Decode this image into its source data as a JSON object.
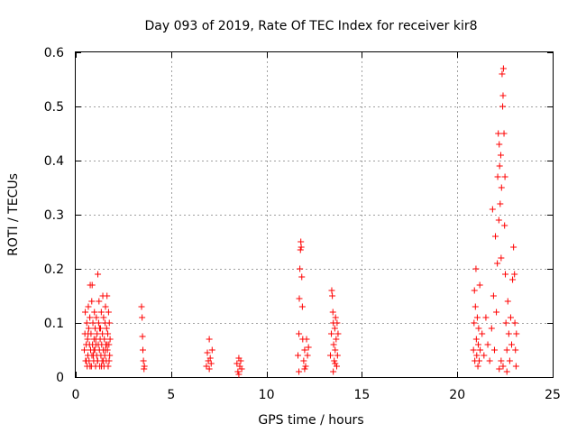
{
  "chart_data": {
    "type": "scatter",
    "title": "Day 093 of 2019, Rate Of TEC Index for receiver kir8",
    "xlabel": "GPS time / hours",
    "ylabel": "ROTI / TECUs",
    "xlim": [
      0,
      25
    ],
    "ylim": [
      0,
      0.6
    ],
    "x_ticks": [
      "0",
      "5",
      "10",
      "15",
      "20",
      "25"
    ],
    "y_ticks": [
      "0",
      "0.1",
      "0.2",
      "0.3",
      "0.4",
      "0.5",
      "0.6"
    ],
    "grid": true,
    "marker": "+",
    "marker_color": "#ff0000",
    "series": [
      {
        "name": "ROTI",
        "points": [
          [
            0.45,
            0.05
          ],
          [
            0.48,
            0.08
          ],
          [
            0.5,
            0.12
          ],
          [
            0.52,
            0.03
          ],
          [
            0.55,
            0.06
          ],
          [
            0.58,
            0.1
          ],
          [
            0.6,
            0.02
          ],
          [
            0.62,
            0.07
          ],
          [
            0.64,
            0.04
          ],
          [
            0.66,
            0.13
          ],
          [
            0.68,
            0.09
          ],
          [
            0.7,
            0.03
          ],
          [
            0.72,
            0.06
          ],
          [
            0.74,
            0.11
          ],
          [
            0.76,
            0.17
          ],
          [
            0.78,
            0.05
          ],
          [
            0.8,
            0.08
          ],
          [
            0.82,
            0.02
          ],
          [
            0.84,
            0.14
          ],
          [
            0.86,
            0.17
          ],
          [
            0.88,
            0.06
          ],
          [
            0.9,
            0.1
          ],
          [
            0.92,
            0.04
          ],
          [
            0.94,
            0.03
          ],
          [
            0.96,
            0.07
          ],
          [
            0.98,
            0.12
          ],
          [
            1.0,
            0.05
          ],
          [
            1.02,
            0.09
          ],
          [
            1.04,
            0.02
          ],
          [
            1.06,
            0.06
          ],
          [
            1.08,
            0.11
          ],
          [
            1.1,
            0.04
          ],
          [
            1.12,
            0.08
          ],
          [
            1.14,
            0.03
          ],
          [
            1.16,
            0.19
          ],
          [
            1.18,
            0.06
          ],
          [
            1.2,
            0.1
          ],
          [
            1.22,
            0.14
          ],
          [
            1.24,
            0.05
          ],
          [
            1.26,
            0.02
          ],
          [
            1.28,
            0.07
          ],
          [
            1.3,
            0.09
          ],
          [
            1.32,
            0.04
          ],
          [
            1.34,
            0.12
          ],
          [
            1.36,
            0.06
          ],
          [
            1.38,
            0.03
          ],
          [
            1.4,
            0.08
          ],
          [
            1.42,
            0.15
          ],
          [
            1.44,
            0.05
          ],
          [
            1.46,
            0.11
          ],
          [
            1.48,
            0.02
          ],
          [
            1.5,
            0.07
          ],
          [
            1.52,
            0.04
          ],
          [
            1.54,
            0.1
          ],
          [
            1.56,
            0.13
          ],
          [
            1.58,
            0.06
          ],
          [
            1.6,
            0.03
          ],
          [
            1.62,
            0.09
          ],
          [
            1.64,
            0.15
          ],
          [
            1.66,
            0.05
          ],
          [
            1.68,
            0.08
          ],
          [
            1.7,
            0.02
          ],
          [
            1.72,
            0.12
          ],
          [
            1.74,
            0.06
          ],
          [
            1.76,
            0.1
          ],
          [
            1.78,
            0.04
          ],
          [
            1.8,
            0.07
          ],
          [
            0.55,
            0.03
          ],
          [
            0.75,
            0.02
          ],
          [
            0.95,
            0.05
          ],
          [
            1.15,
            0.03
          ],
          [
            1.35,
            0.02
          ],
          [
            1.55,
            0.05
          ],
          [
            1.75,
            0.03
          ],
          [
            0.65,
            0.08
          ],
          [
            0.85,
            0.04
          ],
          [
            1.05,
            0.07
          ],
          [
            1.25,
            0.09
          ],
          [
            1.45,
            0.03
          ],
          [
            1.65,
            0.06
          ],
          [
            3.45,
            0.13
          ],
          [
            3.48,
            0.11
          ],
          [
            3.5,
            0.075
          ],
          [
            3.52,
            0.05
          ],
          [
            3.55,
            0.03
          ],
          [
            3.58,
            0.015
          ],
          [
            3.6,
            0.02
          ],
          [
            6.85,
            0.02
          ],
          [
            6.9,
            0.045
          ],
          [
            6.95,
            0.03
          ],
          [
            7.0,
            0.07
          ],
          [
            7.05,
            0.035
          ],
          [
            7.1,
            0.025
          ],
          [
            7.15,
            0.05
          ],
          [
            7.0,
            0.015
          ],
          [
            8.45,
            0.025
          ],
          [
            8.5,
            0.01
          ],
          [
            8.55,
            0.035
          ],
          [
            8.6,
            0.02
          ],
          [
            8.65,
            0.03
          ],
          [
            8.7,
            0.015
          ],
          [
            8.55,
            0.005
          ],
          [
            11.65,
            0.04
          ],
          [
            11.7,
            0.08
          ],
          [
            11.72,
            0.145
          ],
          [
            11.75,
            0.2
          ],
          [
            11.78,
            0.235
          ],
          [
            11.8,
            0.25
          ],
          [
            11.82,
            0.24
          ],
          [
            11.85,
            0.185
          ],
          [
            11.88,
            0.13
          ],
          [
            11.9,
            0.07
          ],
          [
            11.95,
            0.03
          ],
          [
            12.0,
            0.05
          ],
          [
            12.05,
            0.02
          ],
          [
            12.1,
            0.07
          ],
          [
            12.15,
            0.04
          ],
          [
            12.2,
            0.055
          ],
          [
            11.7,
            0.01
          ],
          [
            12.0,
            0.015
          ],
          [
            13.35,
            0.04
          ],
          [
            13.4,
            0.08
          ],
          [
            13.42,
            0.16
          ],
          [
            13.45,
            0.15
          ],
          [
            13.48,
            0.12
          ],
          [
            13.5,
            0.1
          ],
          [
            13.52,
            0.06
          ],
          [
            13.55,
            0.03
          ],
          [
            13.58,
            0.09
          ],
          [
            13.6,
            0.05
          ],
          [
            13.62,
            0.11
          ],
          [
            13.65,
            0.07
          ],
          [
            13.68,
            0.02
          ],
          [
            13.7,
            0.1
          ],
          [
            13.72,
            0.04
          ],
          [
            13.75,
            0.08
          ],
          [
            13.5,
            0.01
          ],
          [
            13.6,
            0.025
          ],
          [
            20.85,
            0.05
          ],
          [
            20.88,
            0.1
          ],
          [
            20.9,
            0.16
          ],
          [
            20.92,
            0.03
          ],
          [
            20.95,
            0.13
          ],
          [
            20.98,
            0.2
          ],
          [
            21.0,
            0.07
          ],
          [
            21.02,
            0.04
          ],
          [
            21.05,
            0.11
          ],
          [
            21.08,
            0.02
          ],
          [
            21.1,
            0.06
          ],
          [
            21.12,
            0.09
          ],
          [
            21.15,
            0.03
          ],
          [
            21.18,
            0.17
          ],
          [
            21.2,
            0.05
          ],
          [
            21.3,
            0.08
          ],
          [
            21.4,
            0.04
          ],
          [
            21.5,
            0.11
          ],
          [
            21.6,
            0.06
          ],
          [
            21.7,
            0.03
          ],
          [
            21.8,
            0.09
          ],
          [
            21.85,
            0.31
          ],
          [
            21.9,
            0.15
          ],
          [
            21.95,
            0.05
          ],
          [
            22.0,
            0.26
          ],
          [
            22.05,
            0.12
          ],
          [
            22.1,
            0.21
          ],
          [
            22.12,
            0.37
          ],
          [
            22.15,
            0.45
          ],
          [
            22.18,
            0.29
          ],
          [
            22.2,
            0.43
          ],
          [
            22.22,
            0.39
          ],
          [
            22.25,
            0.32
          ],
          [
            22.28,
            0.41
          ],
          [
            22.3,
            0.22
          ],
          [
            22.32,
            0.35
          ],
          [
            22.35,
            0.56
          ],
          [
            22.38,
            0.5
          ],
          [
            22.4,
            0.52
          ],
          [
            22.42,
            0.57
          ],
          [
            22.45,
            0.45
          ],
          [
            22.48,
            0.28
          ],
          [
            22.5,
            0.37
          ],
          [
            22.52,
            0.19
          ],
          [
            22.55,
            0.1
          ],
          [
            22.6,
            0.05
          ],
          [
            22.65,
            0.14
          ],
          [
            22.7,
            0.08
          ],
          [
            22.75,
            0.03
          ],
          [
            22.8,
            0.11
          ],
          [
            22.85,
            0.06
          ],
          [
            22.9,
            0.18
          ],
          [
            22.95,
            0.24
          ],
          [
            23.0,
            0.19
          ],
          [
            23.02,
            0.1
          ],
          [
            23.05,
            0.05
          ],
          [
            23.08,
            0.02
          ],
          [
            23.1,
            0.08
          ],
          [
            22.3,
            0.03
          ],
          [
            22.4,
            0.02
          ],
          [
            22.2,
            0.015
          ],
          [
            22.6,
            0.01
          ]
        ]
      }
    ]
  }
}
